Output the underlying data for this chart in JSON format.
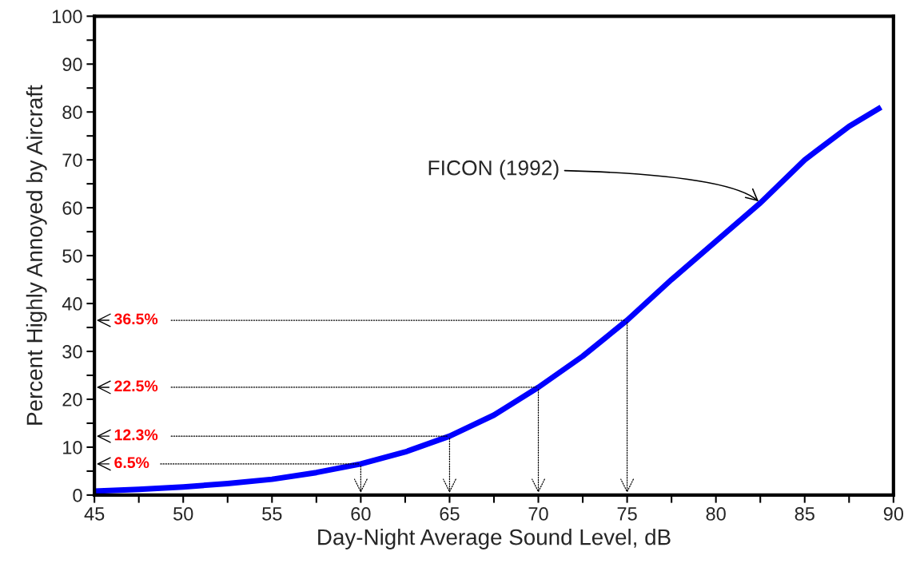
{
  "chart_data": {
    "type": "line",
    "xlabel": "Day-Night Average Sound Level, dB",
    "ylabel": "Percent Highly Annoyed by Aircraft",
    "x": [
      45,
      47.5,
      50,
      52.5,
      55,
      57.5,
      60,
      62.5,
      65,
      67.5,
      70,
      72.5,
      75,
      77.5,
      80,
      82.5,
      85,
      87.5,
      89.3
    ],
    "series": [
      {
        "name": "FICON (1992)",
        "color": "#0000ff",
        "values": [
          0.8,
          1.2,
          1.7,
          2.4,
          3.3,
          4.7,
          6.5,
          9.0,
          12.3,
          16.7,
          22.5,
          29.0,
          36.5,
          45.0,
          53.0,
          61.0,
          70.0,
          77.0,
          81.0
        ]
      }
    ],
    "xlim": [
      45,
      90
    ],
    "ylim": [
      0,
      100
    ],
    "xticks": [
      45,
      {
        "value": 47.5,
        "label": null
      },
      50,
      {
        "value": 52.5,
        "label": null
      },
      55,
      {
        "value": 57.5,
        "label": null
      },
      60,
      {
        "value": 62.5,
        "label": null
      },
      65,
      {
        "value": 67.5,
        "label": null
      },
      70,
      {
        "value": 72.5,
        "label": null
      },
      75,
      {
        "value": 77.5,
        "label": null
      },
      80,
      {
        "value": 82.5,
        "label": null
      },
      85,
      {
        "value": 87.5,
        "label": null
      },
      90
    ],
    "yticks": [
      0,
      {
        "value": 5,
        "label": null
      },
      10,
      {
        "value": 15,
        "label": null
      },
      20,
      {
        "value": 25,
        "label": null
      },
      30,
      {
        "value": 35,
        "label": null
      },
      40,
      {
        "value": 45,
        "label": null
      },
      50,
      {
        "value": 55,
        "label": null
      },
      60,
      {
        "value": 65,
        "label": null
      },
      70,
      {
        "value": 75,
        "label": null
      },
      80,
      {
        "value": 85,
        "label": null
      },
      90,
      {
        "value": 95,
        "label": null
      },
      100
    ],
    "annotations": [
      {
        "text": "36.5%",
        "x": 75,
        "y": 36.5
      },
      {
        "text": "22.5%",
        "x": 70,
        "y": 22.5
      },
      {
        "text": "12.3%",
        "x": 65,
        "y": 12.3
      },
      {
        "text": "6.5%",
        "x": 60,
        "y": 6.5
      }
    ],
    "grid": false,
    "legend": false,
    "marker": "none",
    "line_style": "solid"
  }
}
